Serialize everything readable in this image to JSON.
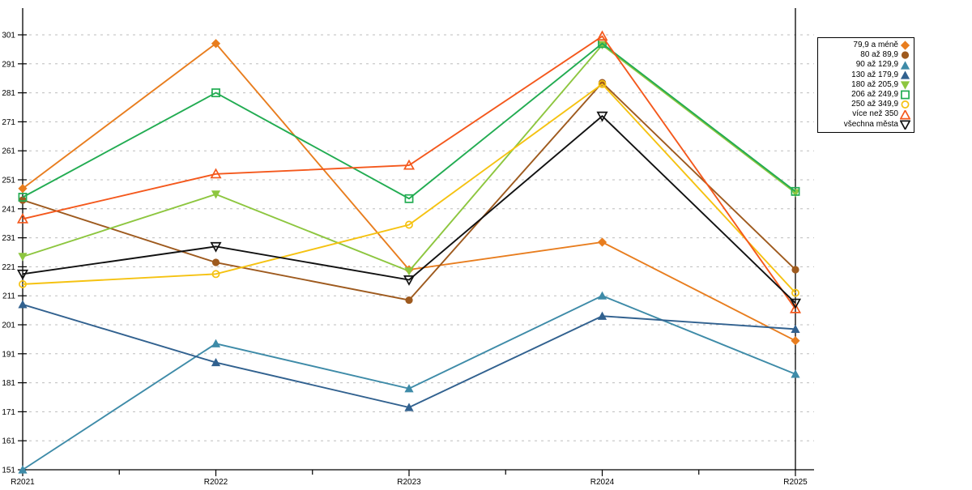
{
  "chart_data": {
    "type": "line",
    "title": "",
    "xlabel": "",
    "ylabel": "",
    "x_categories": [
      "R2021",
      "R2022",
      "R2023",
      "R2024",
      "R2025"
    ],
    "y_ticks": [
      151,
      161,
      171,
      181,
      191,
      201,
      211,
      221,
      231,
      241,
      251,
      261,
      271,
      281,
      291,
      301
    ],
    "ylim": [
      151,
      310
    ],
    "grid": "horizontal-dashed",
    "grid_color": "#bdbdbd",
    "axis_color": "#000000",
    "legend_position": "outside-right-top",
    "series": [
      {
        "name": "79,9 a méně",
        "color": "#E87D1E",
        "marker": "diamond-filled",
        "values": [
          248,
          298,
          220,
          229.5,
          195.5
        ]
      },
      {
        "name": "80 až 89,9",
        "color": "#9E5A1E",
        "marker": "circle-filled",
        "values": [
          244,
          222.5,
          209.5,
          284.5,
          220
        ]
      },
      {
        "name": "90 až 129,9",
        "color": "#3E8BA8",
        "marker": "triangle-up-filled",
        "values": [
          151,
          194.5,
          179,
          211,
          184
        ]
      },
      {
        "name": "130 až 179,9",
        "color": "#31618F",
        "marker": "triangle-up-filled",
        "values": [
          208,
          188,
          172.5,
          204,
          199.5
        ]
      },
      {
        "name": "180 až 205,9",
        "color": "#8DC63F",
        "marker": "triangle-down-filled",
        "values": [
          224.5,
          246,
          219.5,
          297.5,
          246.5
        ]
      },
      {
        "name": "206 až 249,9",
        "color": "#22AC52",
        "marker": "square-open",
        "values": [
          245,
          281,
          244.5,
          298,
          247
        ]
      },
      {
        "name": "250 až 349,9",
        "color": "#F5C211",
        "marker": "circle-open",
        "values": [
          215,
          218.5,
          235.5,
          284,
          212
        ]
      },
      {
        "name": "více než 350",
        "color": "#F4581C",
        "marker": "triangle-up-open",
        "values": [
          237.5,
          253,
          256,
          300.5,
          206.5
        ]
      },
      {
        "name": "všechna města",
        "color": "#111111",
        "marker": "triangle-down-open",
        "values": [
          218.5,
          228,
          216.5,
          273,
          208.5
        ]
      }
    ]
  }
}
